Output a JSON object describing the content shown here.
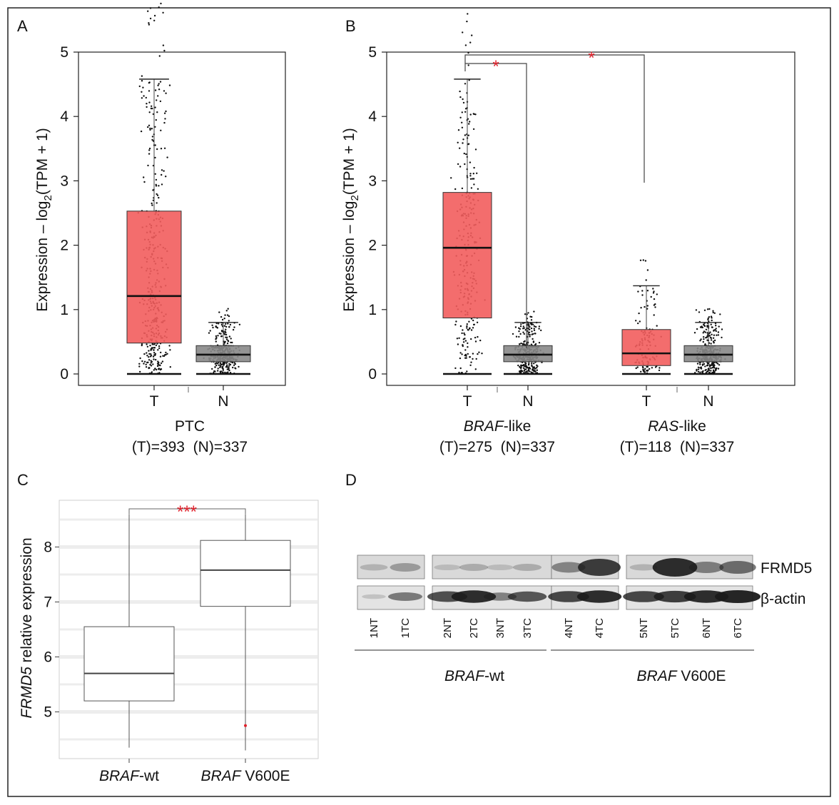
{
  "panels": {
    "A": {
      "letter": "A"
    },
    "B": {
      "letter": "B"
    },
    "C": {
      "letter": "C"
    },
    "D": {
      "letter": "D"
    }
  },
  "chart_data": [
    {
      "panel": "A",
      "type": "box",
      "ylabel_main": "Expression – log",
      "ylabel_sub": "2",
      "ylabel_tail": "(TPM + 1)",
      "ylim": [
        0,
        5
      ],
      "yticks": [
        "0",
        "1",
        "2",
        "3",
        "4",
        "5"
      ],
      "categories": [
        "T",
        "N"
      ],
      "boxes": [
        {
          "label": "T",
          "min": 0.0,
          "q1": 0.48,
          "median": 1.21,
          "q3": 2.53,
          "max": 4.58,
          "color": "#f25d5d",
          "n_points": 393
        },
        {
          "label": "N",
          "min": 0.0,
          "q1": 0.19,
          "median": 0.3,
          "q3": 0.44,
          "max": 0.8,
          "color": "#888888",
          "n_points": 337
        }
      ],
      "group_label": "PTC",
      "n_label": "(T)=393  (N)=337"
    },
    {
      "panel": "B",
      "type": "box",
      "ylabel_main": "Expression – log",
      "ylabel_sub": "2",
      "ylabel_tail": "(TPM + 1)",
      "ylim": [
        0,
        5
      ],
      "yticks": [
        "0",
        "1",
        "2",
        "3",
        "4",
        "5"
      ],
      "categories": [
        "T",
        "N",
        "T",
        "N"
      ],
      "boxes": [
        {
          "label": "T",
          "min": 0.0,
          "q1": 0.87,
          "median": 1.96,
          "q3": 2.82,
          "max": 4.58,
          "color": "#f25d5d",
          "n_points": 275
        },
        {
          "label": "N",
          "min": 0.0,
          "q1": 0.19,
          "median": 0.3,
          "q3": 0.44,
          "max": 0.8,
          "color": "#888888",
          "n_points": 337
        },
        {
          "label": "T",
          "min": 0.0,
          "q1": 0.13,
          "median": 0.32,
          "q3": 0.69,
          "max": 1.37,
          "color": "#f25d5d",
          "n_points": 118
        },
        {
          "label": "N",
          "min": 0.0,
          "q1": 0.19,
          "median": 0.3,
          "q3": 0.44,
          "max": 0.8,
          "color": "#888888",
          "n_points": 337
        }
      ],
      "groups": [
        {
          "name_italic": "BRAF",
          "name_rest": "-like",
          "n_label": "(T)=275  (N)=337"
        },
        {
          "name_italic": "RAS",
          "name_rest": "-like",
          "n_label": "(T)=118  (N)=337"
        }
      ],
      "significance": [
        "*",
        "*"
      ]
    },
    {
      "panel": "C",
      "type": "box",
      "ylabel_italic": "FRMD5",
      "ylabel_rest": " relative expression",
      "ylim": [
        4.15,
        8.85
      ],
      "yticks": [
        "5",
        "6",
        "7",
        "8"
      ],
      "categories": [
        {
          "italic": "BRAF",
          "rest": "-wt"
        },
        {
          "italic": "BRAF",
          "rest": " V600E"
        }
      ],
      "boxes": [
        {
          "min": 4.35,
          "q1": 5.2,
          "median": 5.7,
          "q3": 6.55,
          "max": 8.6
        },
        {
          "min": 4.3,
          "q1": 6.92,
          "median": 7.58,
          "q3": 8.12,
          "max": 8.6,
          "outlier": 4.75
        }
      ],
      "significance": "***"
    }
  ],
  "western_blot": {
    "panel": "D",
    "proteins": [
      "FRMD5",
      "β-actin"
    ],
    "lanes": [
      "1NT",
      "1TC",
      "2NT",
      "2TC",
      "3NT",
      "3TC",
      "4NT",
      "4TC",
      "5NT",
      "5TC",
      "6NT",
      "6TC"
    ],
    "groups": [
      {
        "italic": "BRAF",
        "rest": "-wt"
      },
      {
        "italic": "BRAF",
        "rest": " V600E"
      }
    ],
    "frmd5_intensity": [
      0.1,
      0.25,
      0.05,
      0.15,
      0.05,
      0.15,
      0.4,
      0.85,
      0.1,
      0.95,
      0.45,
      0.55
    ],
    "actin_intensity": [
      0.05,
      0.5,
      0.75,
      0.95,
      0.45,
      0.7,
      0.8,
      0.95,
      0.8,
      0.85,
      0.95,
      1.0
    ]
  },
  "colors": {
    "tumor": "#f25d5d",
    "normal": "#888888",
    "significance": "#e0202a"
  }
}
